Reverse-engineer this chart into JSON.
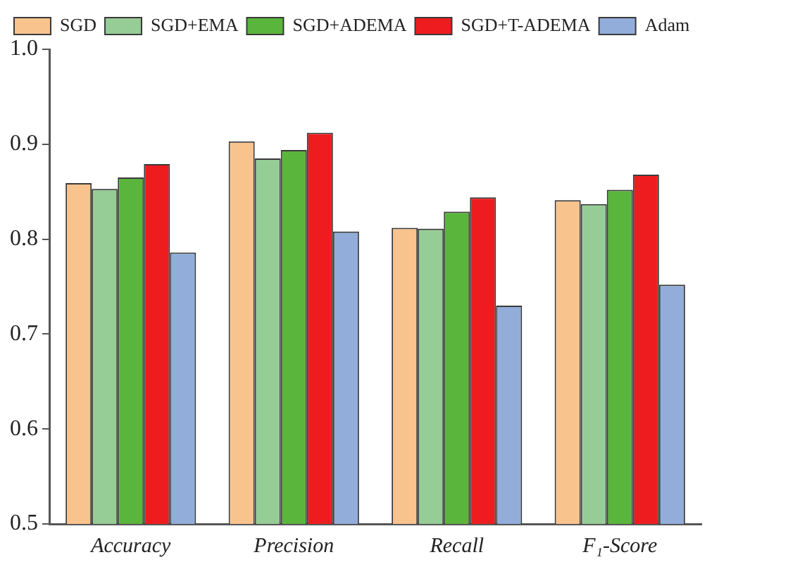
{
  "chart_data": {
    "type": "bar",
    "categories": [
      "Accuracy",
      "Precision",
      "Recall",
      "F₁-Score"
    ],
    "series": [
      {
        "name": "SGD",
        "color": "#f9c38e",
        "values": [
          0.859,
          0.903,
          0.812,
          0.841
        ]
      },
      {
        "name": "SGD+EMA",
        "color": "#96cc96",
        "values": [
          0.853,
          0.885,
          0.811,
          0.837
        ]
      },
      {
        "name": "SGD+ADEMA",
        "color": "#5ab53c",
        "values": [
          0.865,
          0.894,
          0.829,
          0.852
        ]
      },
      {
        "name": "SGD+T-ADEMA",
        "color": "#ee1c1e",
        "values": [
          0.879,
          0.912,
          0.844,
          0.868
        ]
      },
      {
        "name": "Adam",
        "color": "#92add9",
        "values": [
          0.786,
          0.808,
          0.73,
          0.752
        ]
      }
    ],
    "ylim": [
      0.5,
      1.0
    ],
    "yticks": [
      {
        "value": 0.5,
        "label": "0.5"
      },
      {
        "value": 0.6,
        "label": "0.6"
      },
      {
        "value": 0.7,
        "label": "0.7"
      },
      {
        "value": 0.8,
        "label": "0.8"
      },
      {
        "value": 0.9,
        "label": "0.9"
      },
      {
        "value": 1.0,
        "label": "1.0"
      }
    ],
    "grid": false,
    "legend": "top"
  }
}
